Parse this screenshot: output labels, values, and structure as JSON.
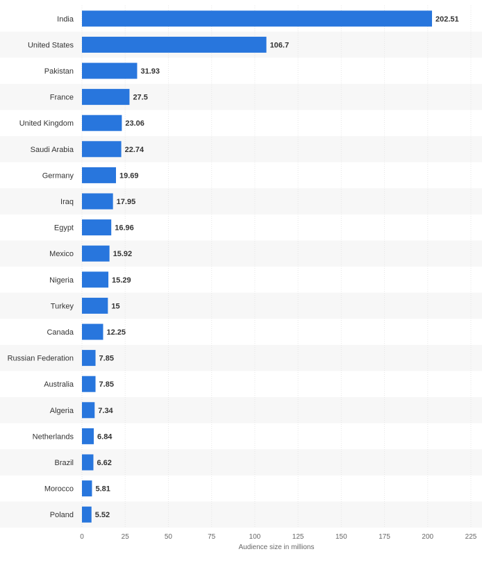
{
  "chart_data": {
    "type": "bar",
    "orientation": "horizontal",
    "title": "",
    "xlabel": "Audience size in millions",
    "ylabel": "",
    "xlim": [
      0,
      225
    ],
    "xticks": [
      0,
      25,
      50,
      75,
      100,
      125,
      150,
      175,
      200,
      225
    ],
    "grid": true,
    "legend": "none",
    "bar_color": "#2876dd",
    "stripe_color": "#f7f7f7",
    "categories": [
      "India",
      "United States",
      "Pakistan",
      "France",
      "United Kingdom",
      "Saudi Arabia",
      "Germany",
      "Iraq",
      "Egypt",
      "Mexico",
      "Nigeria",
      "Turkey",
      "Canada",
      "Russian Federation",
      "Australia",
      "Algeria",
      "Netherlands",
      "Brazil",
      "Morocco",
      "Poland"
    ],
    "values": [
      202.51,
      106.7,
      31.93,
      27.5,
      23.06,
      22.74,
      19.69,
      17.95,
      16.96,
      15.92,
      15.29,
      15,
      12.25,
      7.85,
      7.85,
      7.34,
      6.84,
      6.62,
      5.81,
      5.52
    ],
    "value_labels": [
      "202.51",
      "106.7",
      "31.93",
      "27.5",
      "23.06",
      "22.74",
      "19.69",
      "17.95",
      "16.96",
      "15.92",
      "15.29",
      "15",
      "12.25",
      "7.85",
      "7.85",
      "7.34",
      "6.84",
      "6.62",
      "5.81",
      "5.52"
    ]
  }
}
